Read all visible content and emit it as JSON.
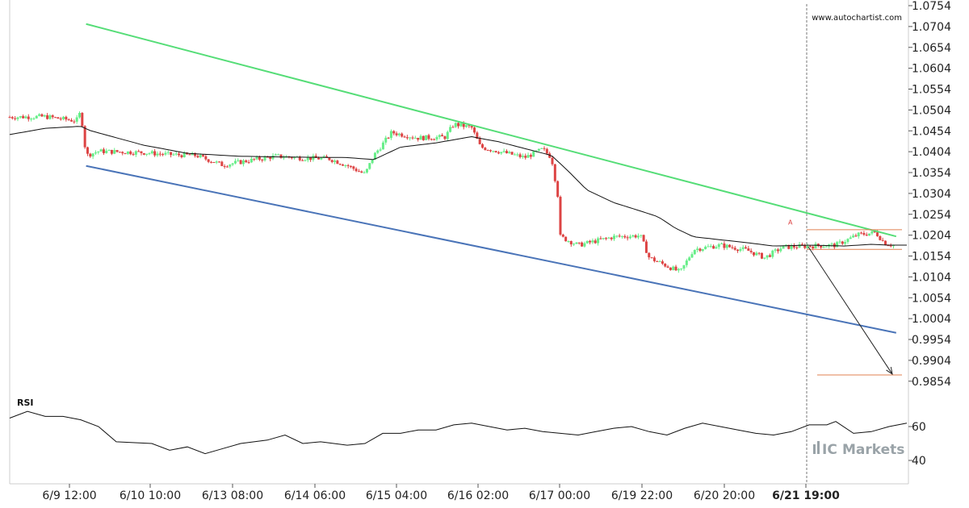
{
  "site": "www.autochartist.com",
  "brand": {
    "prefix": "IC",
    "name": "Markets",
    "color": "#9aa3a8"
  },
  "colors": {
    "up_candle": "#66ee88",
    "down_candle": "#dd4444",
    "upper_channel": "#55dd77",
    "lower_channel": "#4a74b8",
    "ma": "#111111",
    "level": "#e08050",
    "grid": "#e4e4e4"
  },
  "chart_data": [
    {
      "type": "candlestick",
      "symbol_panel": "price",
      "yticks": [
        "1.0754",
        "1.0704",
        "1.0654",
        "1.0604",
        "1.0554",
        "1.0504",
        "1.0454",
        "1.0404",
        "1.0354",
        "1.0304",
        "1.0254",
        "1.0204",
        "1.0154",
        "1.0104",
        "1.0054",
        "1.0004",
        "0.9954",
        "0.9904",
        "0.9854"
      ],
      "ylim": [
        0.9834,
        1.0764
      ],
      "xticks": [
        "6/9 12:00",
        "6/10 10:00",
        "6/13 08:00",
        "6/14 06:00",
        "6/15 04:00",
        "6/16 02:00",
        "6/17 00:00",
        "6/19 22:00",
        "6/20 20:00",
        "6/21 19:00"
      ],
      "current_time_label": "6/21 19:00",
      "channel": {
        "upper": [
          [
            0.086,
            1.071
          ],
          [
            0.998,
            1.0201
          ]
        ],
        "lower": [
          [
            0.086,
            1.037
          ],
          [
            0.998,
            0.997
          ]
        ]
      },
      "levels": [
        1.0217,
        1.017,
        0.9869
      ],
      "forecast_arrow": [
        [
          0.999,
          1.0176
        ],
        [
          1.106,
          0.9871
        ]
      ],
      "pattern_marker": "A",
      "close_path": [
        [
          0.0,
          1.0487
        ],
        [
          0.04,
          1.0488
        ],
        [
          0.075,
          1.0478
        ],
        [
          0.08,
          1.05
        ],
        [
          0.086,
          1.0395
        ],
        [
          0.1,
          1.0405
        ],
        [
          0.15,
          1.0402
        ],
        [
          0.18,
          1.0397
        ],
        [
          0.21,
          1.0395
        ],
        [
          0.24,
          1.0372
        ],
        [
          0.27,
          1.0383
        ],
        [
          0.3,
          1.0393
        ],
        [
          0.33,
          1.0389
        ],
        [
          0.36,
          1.0387
        ],
        [
          0.38,
          1.0371
        ],
        [
          0.4,
          1.035
        ],
        [
          0.41,
          1.0395
        ],
        [
          0.43,
          1.045
        ],
        [
          0.46,
          1.0437
        ],
        [
          0.49,
          1.0439
        ],
        [
          0.5,
          1.047
        ],
        [
          0.52,
          1.0462
        ],
        [
          0.53,
          1.0415
        ],
        [
          0.56,
          1.04
        ],
        [
          0.58,
          1.039
        ],
        [
          0.6,
          1.041
        ],
        [
          0.61,
          1.039
        ],
        [
          0.617,
          1.03
        ],
        [
          0.62,
          1.02
        ],
        [
          0.64,
          1.018
        ],
        [
          0.66,
          1.019
        ],
        [
          0.68,
          1.02
        ],
        [
          0.71,
          1.0203
        ],
        [
          0.72,
          1.015
        ],
        [
          0.73,
          1.014
        ],
        [
          0.745,
          1.0125
        ],
        [
          0.755,
          1.0115
        ],
        [
          0.77,
          1.017
        ],
        [
          0.8,
          1.018
        ],
        [
          0.83,
          1.0168
        ],
        [
          0.85,
          1.015
        ],
        [
          0.87,
          1.0175
        ],
        [
          0.9,
          1.0178
        ],
        [
          0.93,
          1.018
        ],
        [
          0.955,
          1.0205
        ],
        [
          0.975,
          1.021
        ],
        [
          0.985,
          1.0185
        ],
        [
          0.995,
          1.018
        ]
      ],
      "ma_path": [
        [
          0.0,
          1.0445
        ],
        [
          0.04,
          1.046
        ],
        [
          0.08,
          1.0465
        ],
        [
          0.09,
          1.0455
        ],
        [
          0.15,
          1.042
        ],
        [
          0.2,
          1.04
        ],
        [
          0.26,
          1.0393
        ],
        [
          0.32,
          1.0391
        ],
        [
          0.38,
          1.039
        ],
        [
          0.41,
          1.0385
        ],
        [
          0.44,
          1.0415
        ],
        [
          0.48,
          1.0425
        ],
        [
          0.52,
          1.044
        ],
        [
          0.55,
          1.0428
        ],
        [
          0.59,
          1.0406
        ],
        [
          0.61,
          1.0395
        ],
        [
          0.63,
          1.0355
        ],
        [
          0.65,
          1.0312
        ],
        [
          0.68,
          1.0282
        ],
        [
          0.71,
          1.0262
        ],
        [
          0.73,
          1.0248
        ],
        [
          0.75,
          1.022
        ],
        [
          0.77,
          1.02
        ],
        [
          0.8,
          1.0193
        ],
        [
          0.83,
          1.0186
        ],
        [
          0.86,
          1.0178
        ],
        [
          0.9,
          1.018
        ],
        [
          0.94,
          1.0178
        ],
        [
          0.97,
          1.0182
        ],
        [
          0.99,
          1.018
        ],
        [
          1.01,
          1.018
        ]
      ]
    },
    {
      "type": "line",
      "symbol_panel": "RSI",
      "title": "RSI",
      "yticks": [
        "60",
        "40"
      ],
      "ylim": [
        35,
        70
      ],
      "values": [
        [
          0.0,
          65
        ],
        [
          0.02,
          69
        ],
        [
          0.04,
          66
        ],
        [
          0.06,
          66
        ],
        [
          0.08,
          64
        ],
        [
          0.1,
          60
        ],
        [
          0.12,
          51
        ],
        [
          0.16,
          50
        ],
        [
          0.18,
          46
        ],
        [
          0.2,
          48
        ],
        [
          0.22,
          44
        ],
        [
          0.24,
          47
        ],
        [
          0.26,
          50
        ],
        [
          0.29,
          52
        ],
        [
          0.31,
          55
        ],
        [
          0.33,
          50
        ],
        [
          0.35,
          51
        ],
        [
          0.38,
          49
        ],
        [
          0.4,
          50
        ],
        [
          0.42,
          56
        ],
        [
          0.44,
          56
        ],
        [
          0.46,
          58
        ],
        [
          0.48,
          58
        ],
        [
          0.5,
          61
        ],
        [
          0.52,
          62
        ],
        [
          0.54,
          60
        ],
        [
          0.56,
          58
        ],
        [
          0.58,
          59
        ],
        [
          0.6,
          57
        ],
        [
          0.62,
          56
        ],
        [
          0.64,
          55
        ],
        [
          0.66,
          57
        ],
        [
          0.68,
          59
        ],
        [
          0.7,
          60
        ],
        [
          0.72,
          57
        ],
        [
          0.74,
          55
        ],
        [
          0.76,
          59
        ],
        [
          0.78,
          62
        ],
        [
          0.8,
          60
        ],
        [
          0.82,
          58
        ],
        [
          0.84,
          56
        ],
        [
          0.86,
          55
        ],
        [
          0.88,
          57
        ],
        [
          0.9,
          61
        ],
        [
          0.92,
          61
        ],
        [
          0.93,
          63
        ],
        [
          0.95,
          56
        ],
        [
          0.97,
          57
        ],
        [
          0.99,
          60
        ],
        [
          1.01,
          62
        ]
      ]
    }
  ]
}
